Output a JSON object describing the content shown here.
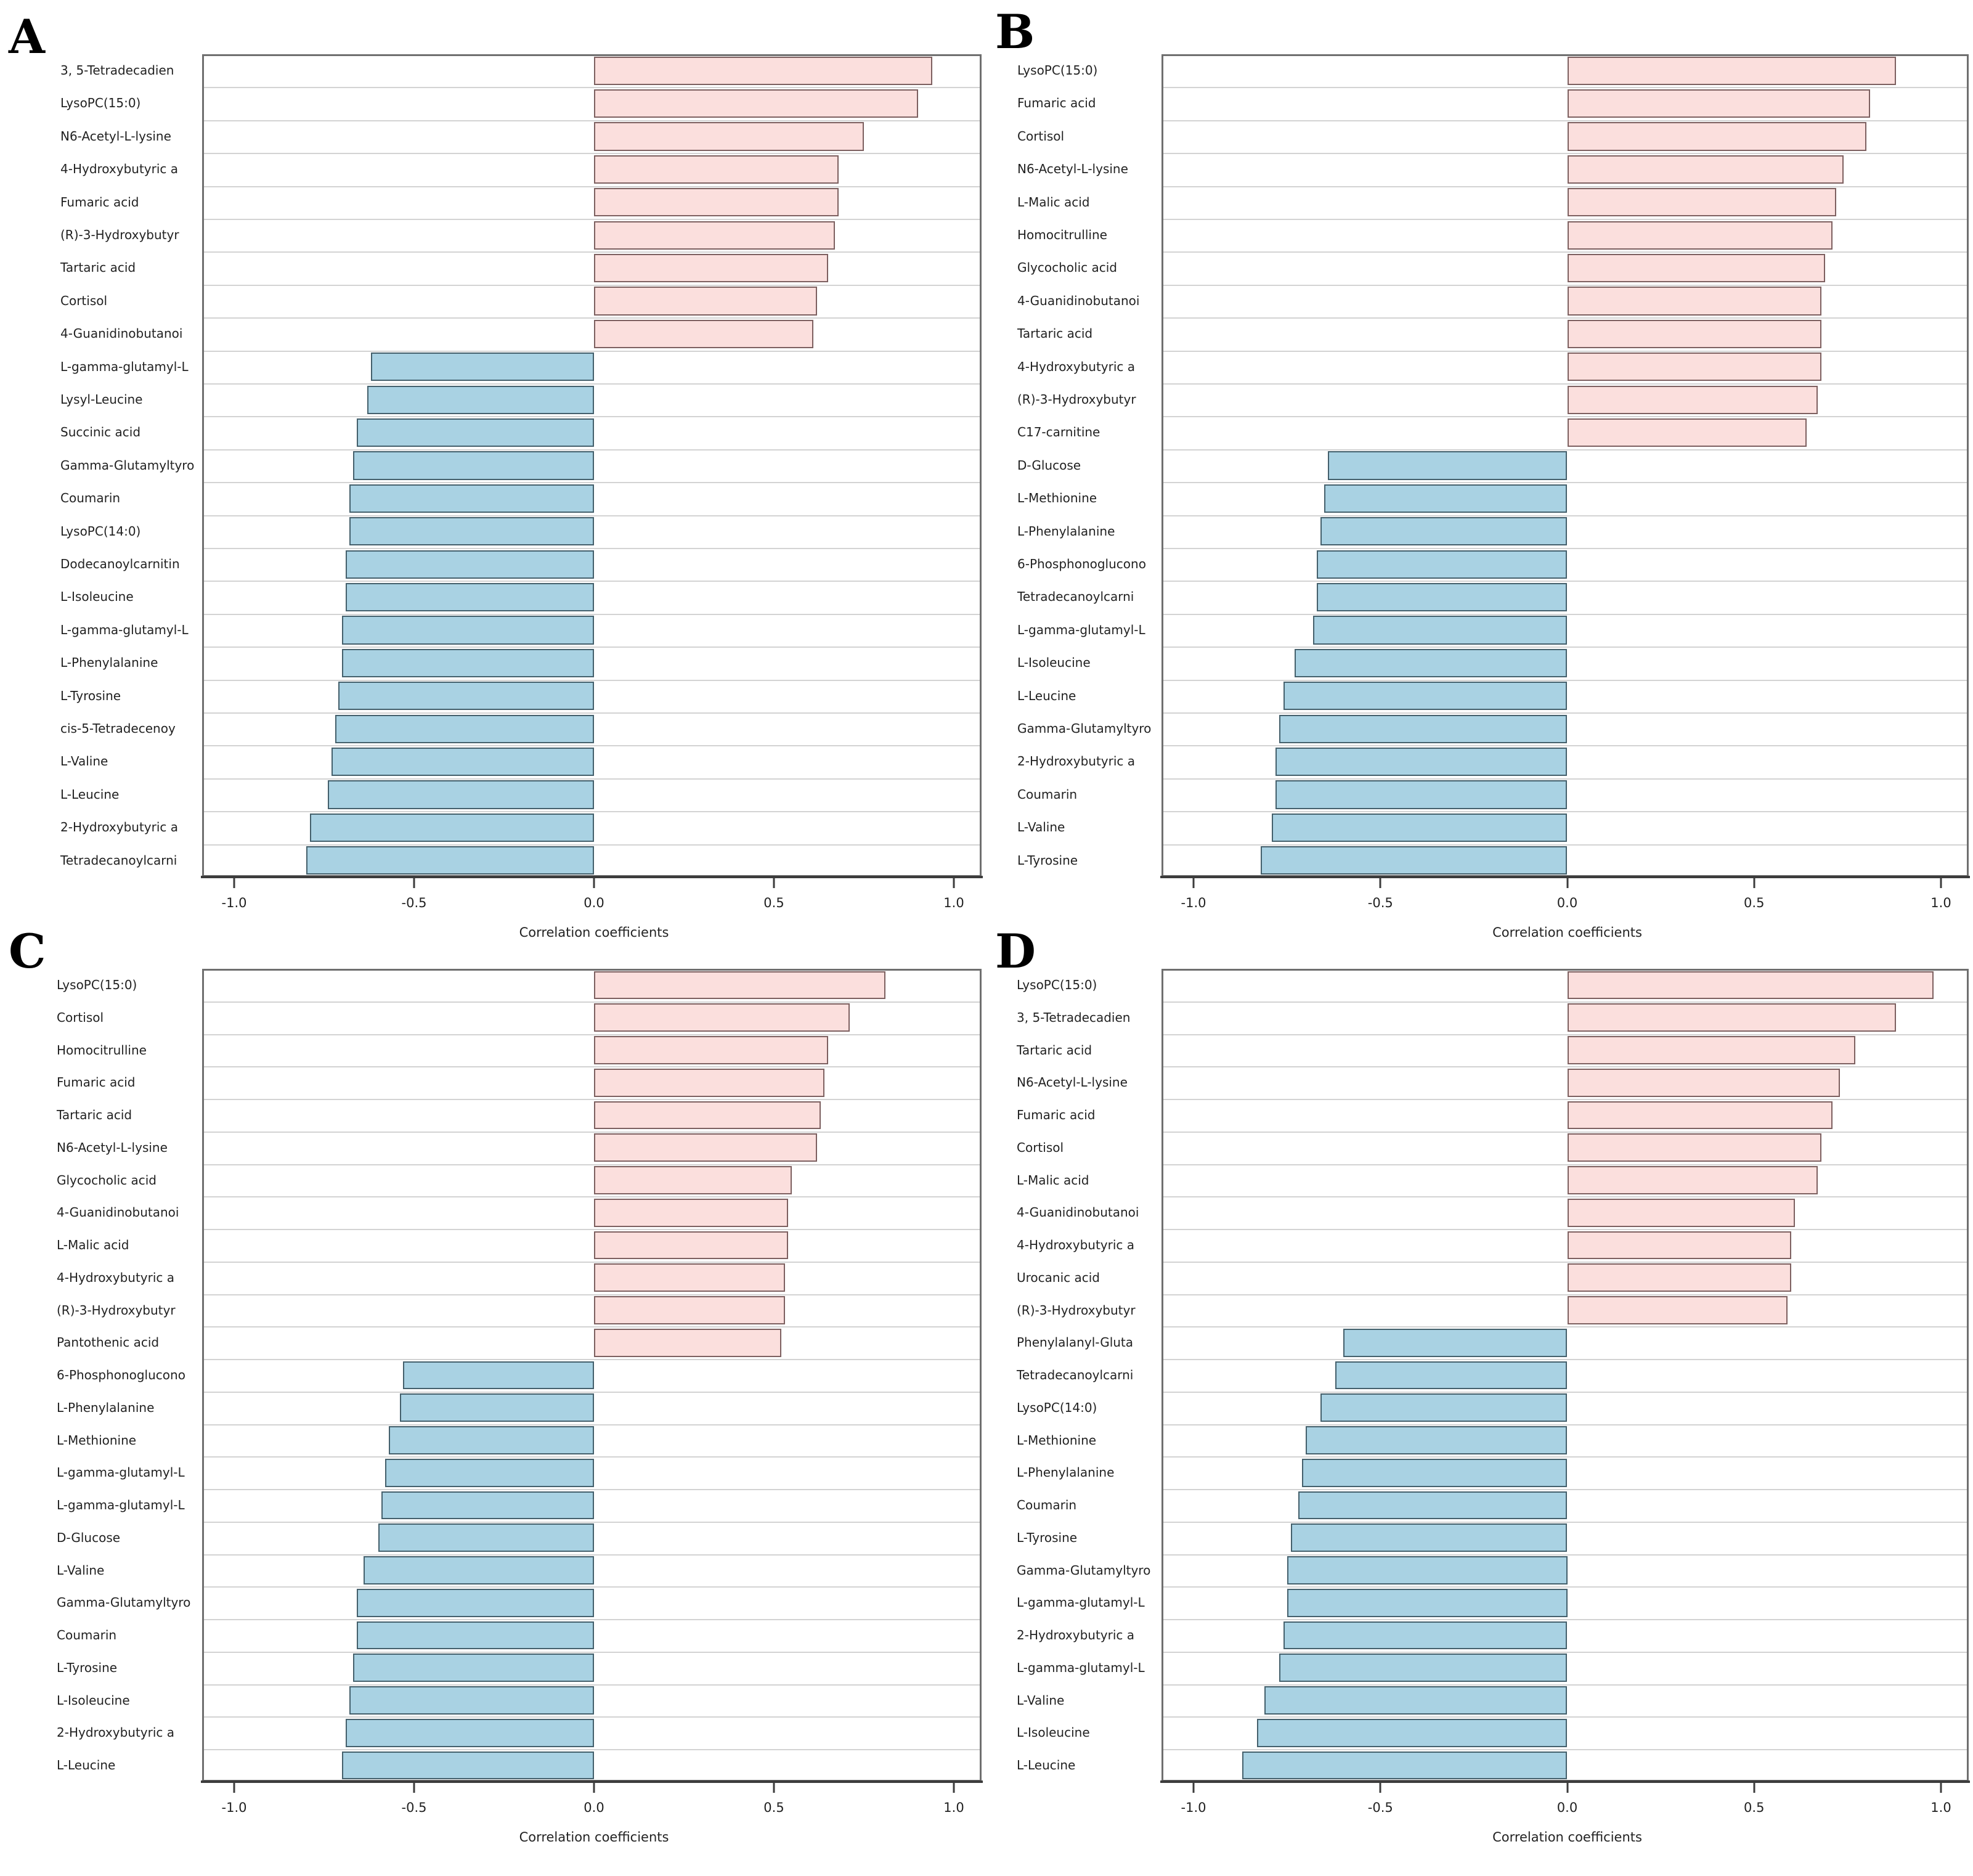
{
  "figure": {
    "background": "#ffffff",
    "description": "Four-panel horizontal bar figure of metabolite correlation coefficients"
  },
  "colors": {
    "positive_fill": "#fbdfdd",
    "positive_border": "#7d6060",
    "negative_fill": "#a9d2e3",
    "negative_border": "#44606c",
    "gridline": "#d3d3d3",
    "frame": "#6f6f6f",
    "axis": "#3c3c3c"
  },
  "axis": {
    "label": "Correlation coefficients",
    "ticks": [
      -1.0,
      -0.5,
      0.0,
      0.5,
      1.0
    ],
    "tick_labels": [
      "-1.0",
      "-0.5",
      "0.0",
      "0.5",
      "1.0"
    ],
    "xlim": [
      -1.1,
      1.1
    ],
    "grid": "horizontal"
  },
  "chart_data": [
    {
      "panel": "A",
      "type": "bar",
      "orientation": "horizontal",
      "xlabel": "Correlation coefficients",
      "xlim": [
        -1.1,
        1.1
      ],
      "categories": [
        "3, 5-Tetradecadien",
        "LysoPC(15:0)",
        "N6-Acetyl-L-lysine",
        "4-Hydroxybutyric a",
        "Fumaric acid",
        "(R)-3-Hydroxybutyr",
        "Tartaric acid",
        "Cortisol",
        "4-Guanidinobutanoi",
        "L-gamma-glutamyl-L",
        "Lysyl-Leucine",
        "Succinic acid",
        "Gamma-Glutamyltyro",
        "Coumarin",
        "LysoPC(14:0)",
        "Dodecanoylcarnitin",
        "L-Isoleucine",
        "L-gamma-glutamyl-L",
        "L-Phenylalanine",
        "L-Tyrosine",
        "cis-5-Tetradecenoy",
        "L-Valine",
        "L-Leucine",
        "2-Hydroxybutyric a",
        "Tetradecanoylcarni"
      ],
      "values": [
        0.94,
        0.9,
        0.75,
        0.68,
        0.68,
        0.67,
        0.65,
        0.62,
        0.61,
        -0.62,
        -0.63,
        -0.66,
        -0.67,
        -0.68,
        -0.68,
        -0.69,
        -0.69,
        -0.7,
        -0.7,
        -0.71,
        -0.72,
        -0.73,
        -0.74,
        -0.79,
        -0.8
      ]
    },
    {
      "panel": "B",
      "type": "bar",
      "orientation": "horizontal",
      "xlabel": "Correlation coefficients",
      "xlim": [
        -1.1,
        1.1
      ],
      "categories": [
        "LysoPC(15:0)",
        "Fumaric acid",
        "Cortisol",
        "N6-Acetyl-L-lysine",
        "L-Malic acid",
        "Homocitrulline",
        "Glycocholic acid",
        "4-Guanidinobutanoi",
        "Tartaric acid",
        "4-Hydroxybutyric a",
        "(R)-3-Hydroxybutyr",
        "C17-carnitine",
        "D-Glucose",
        "L-Methionine",
        "L-Phenylalanine",
        "6-Phosphonoglucono",
        "Tetradecanoylcarni",
        "L-gamma-glutamyl-L",
        "L-Isoleucine",
        "L-Leucine",
        "Gamma-Glutamyltyro",
        "2-Hydroxybutyric a",
        "Coumarin",
        "L-Valine",
        "L-Tyrosine"
      ],
      "values": [
        0.88,
        0.81,
        0.8,
        0.74,
        0.72,
        0.71,
        0.69,
        0.68,
        0.68,
        0.68,
        0.67,
        0.64,
        -0.64,
        -0.65,
        -0.66,
        -0.67,
        -0.67,
        -0.68,
        -0.73,
        -0.76,
        -0.77,
        -0.78,
        -0.78,
        -0.79,
        -0.82
      ]
    },
    {
      "panel": "C",
      "type": "bar",
      "orientation": "horizontal",
      "xlabel": "Correlation coefficients",
      "xlim": [
        -1.1,
        1.1
      ],
      "categories": [
        "LysoPC(15:0)",
        "Cortisol",
        "Homocitrulline",
        "Fumaric acid",
        "Tartaric acid",
        "N6-Acetyl-L-lysine",
        "Glycocholic acid",
        "4-Guanidinobutanoi",
        "L-Malic acid",
        "4-Hydroxybutyric a",
        "(R)-3-Hydroxybutyr",
        "Pantothenic acid",
        "6-Phosphonoglucono",
        "L-Phenylalanine",
        "L-Methionine",
        "L-gamma-glutamyl-L",
        "L-gamma-glutamyl-L",
        "D-Glucose",
        "L-Valine",
        "Gamma-Glutamyltyro",
        "Coumarin",
        "L-Tyrosine",
        "L-Isoleucine",
        "2-Hydroxybutyric a",
        "L-Leucine"
      ],
      "values": [
        0.81,
        0.71,
        0.65,
        0.64,
        0.63,
        0.62,
        0.55,
        0.54,
        0.54,
        0.53,
        0.53,
        0.52,
        -0.53,
        -0.54,
        -0.57,
        -0.58,
        -0.59,
        -0.6,
        -0.64,
        -0.66,
        -0.66,
        -0.67,
        -0.68,
        -0.69,
        -0.7
      ]
    },
    {
      "panel": "D",
      "type": "bar",
      "orientation": "horizontal",
      "xlabel": "Correlation coefficients",
      "xlim": [
        -1.1,
        1.1
      ],
      "categories": [
        "LysoPC(15:0)",
        "3, 5-Tetradecadien",
        "Tartaric acid",
        "N6-Acetyl-L-lysine",
        "Fumaric acid",
        "Cortisol",
        "L-Malic acid",
        "4-Guanidinobutanoi",
        "4-Hydroxybutyric a",
        "Urocanic acid",
        "(R)-3-Hydroxybutyr",
        "Phenylalanyl-Gluta",
        "Tetradecanoylcarni",
        "LysoPC(14:0)",
        "L-Methionine",
        "L-Phenylalanine",
        "Coumarin",
        "L-Tyrosine",
        "Gamma-Glutamyltyro",
        "L-gamma-glutamyl-L",
        "2-Hydroxybutyric a",
        "L-gamma-glutamyl-L",
        "L-Valine",
        "L-Isoleucine",
        "L-Leucine"
      ],
      "values": [
        0.98,
        0.88,
        0.77,
        0.73,
        0.71,
        0.68,
        0.67,
        0.61,
        0.6,
        0.6,
        0.59,
        -0.6,
        -0.62,
        -0.66,
        -0.7,
        -0.71,
        -0.72,
        -0.74,
        -0.75,
        -0.75,
        -0.76,
        -0.77,
        -0.81,
        -0.83,
        -0.87
      ]
    }
  ]
}
